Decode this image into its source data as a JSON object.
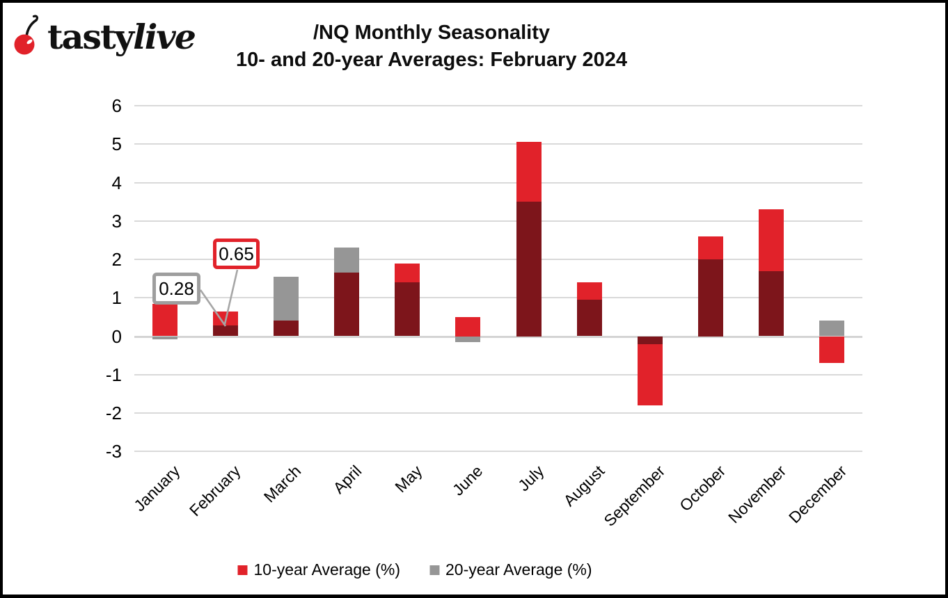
{
  "logo": {
    "tasty": "tasty",
    "live": "live",
    "cherry_color": "#e1222a"
  },
  "title": {
    "line1": "/NQ Monthly Seasonality",
    "line2": "10- and 20-year Averages: February 2024"
  },
  "chart_data": {
    "type": "bar",
    "title": "/NQ Monthly Seasonality",
    "subtitle": "10- and 20-year Averages: February 2024",
    "categories": [
      "January",
      "February",
      "March",
      "April",
      "May",
      "June",
      "July",
      "August",
      "September",
      "October",
      "November",
      "December"
    ],
    "series": [
      {
        "name": "10-year Average (%)",
        "color": "#e1222a",
        "values": [
          0.85,
          0.65,
          0.4,
          1.65,
          1.9,
          0.5,
          5.05,
          1.4,
          -1.8,
          2.6,
          3.3,
          -0.7
        ]
      },
      {
        "name": "20-year Average (%)",
        "color": "#969696",
        "values": [
          -0.08,
          0.28,
          1.55,
          2.3,
          1.4,
          -0.15,
          3.5,
          0.95,
          -0.2,
          2.0,
          1.7,
          0.4
        ]
      }
    ],
    "overlap_color": "#7d151b",
    "grid": true,
    "gridline_color": "#d9d9d9",
    "y_ticks": [
      6,
      5,
      4,
      3,
      2,
      1,
      0,
      -1,
      -2,
      -3
    ],
    "ylim": [
      -3,
      6
    ],
    "xlabel": "",
    "ylabel": "",
    "legend_position": "bottom",
    "annotations": [
      {
        "label": "0.28",
        "applies_to": "February 20-year Average (%)",
        "box_border_color": "#9e9e9e"
      },
      {
        "label": "0.65",
        "applies_to": "February 10-year Average (%)",
        "box_border_color": "#e1222a"
      }
    ]
  }
}
